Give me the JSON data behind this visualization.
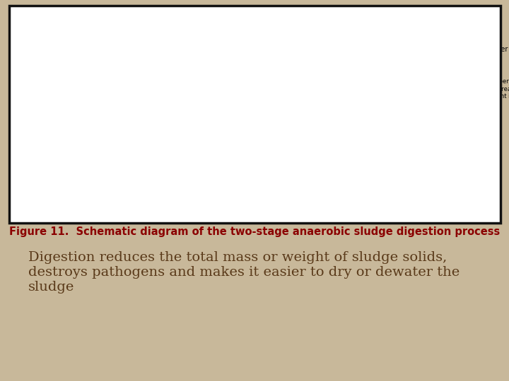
{
  "background_color": "#c8b89a",
  "slide_bg": "#ffffff",
  "border_color": "#111111",
  "figure_caption": "Figure 11.  Schematic diagram of the two-stage anaerobic sludge digestion process",
  "caption_color": "#8b0000",
  "caption_fontsize": 10.5,
  "body_text": "Digestion reduces the total mass or weight of sludge solids,\ndestroys pathogens and makes it easier to dry or dewater the\nsludge",
  "body_color": "#5a3a1a",
  "body_fontsize": 14,
  "tank1_fill": "#cccccc",
  "tank1_dot_fill": "#aaaaaa",
  "tank2_gas_fill": "#e8e8e8",
  "tank2_scum_fill": "#888888",
  "tank2_supernatant_fill": "#c0c0c0",
  "tank2_sludge_fill": "#787878"
}
